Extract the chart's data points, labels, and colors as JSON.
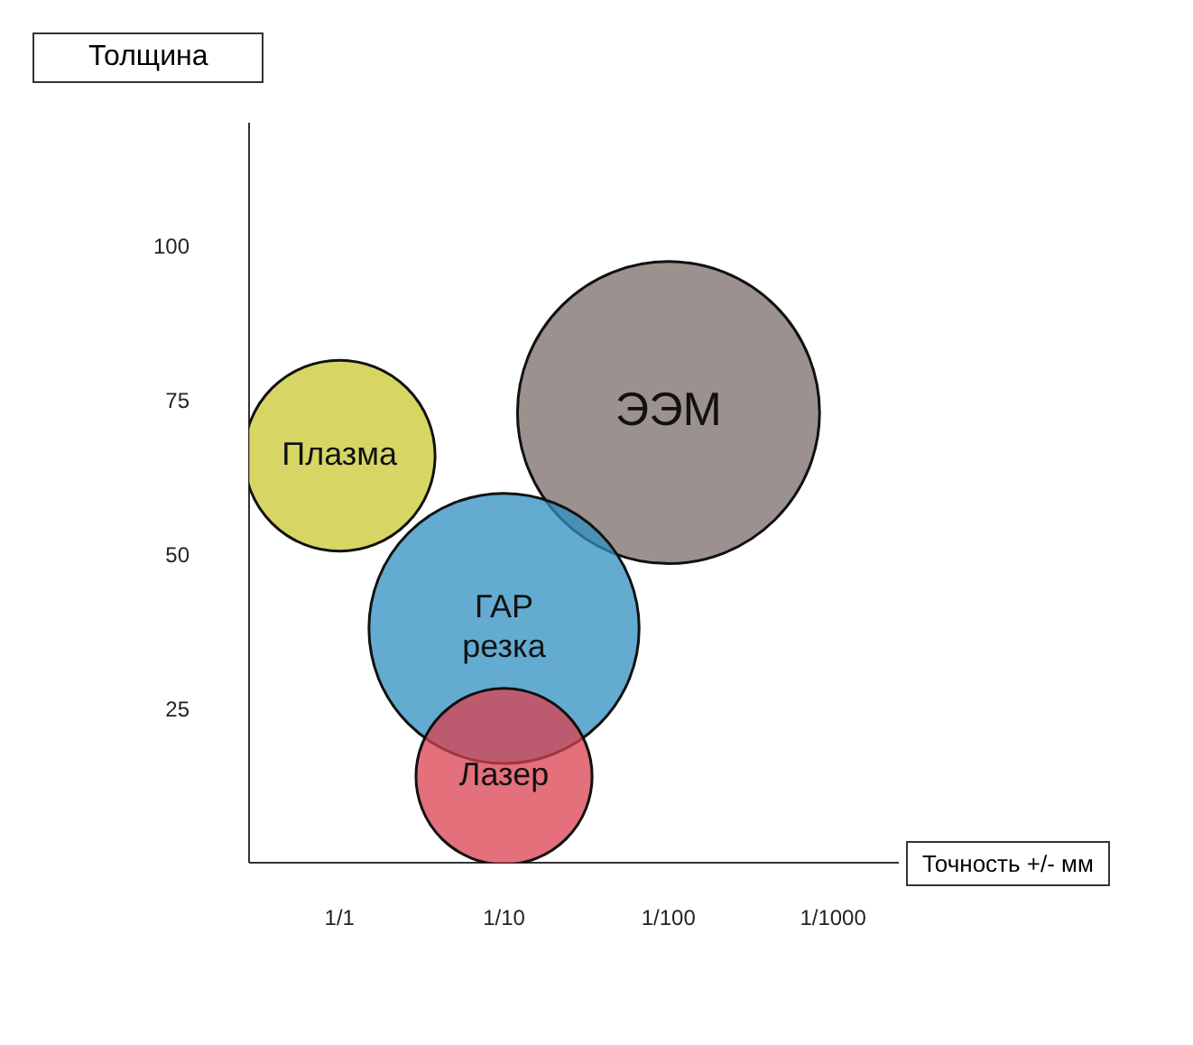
{
  "chart_data": {
    "type": "bubble",
    "xlabel": "Точность +/- мм",
    "ylabel": "Толщина",
    "categories": [
      "1/1",
      "1/10",
      "1/100",
      "1/1000"
    ],
    "ylim": [
      0,
      120
    ],
    "yticks": [
      25,
      50,
      75,
      100
    ],
    "grid": false,
    "legend": false,
    "marker": "circle",
    "series": [
      {
        "name": "ЭЭМ",
        "color": "#7a6c6a",
        "x": [
          "1/100"
        ],
        "values": [
          73
        ],
        "sizes": [
          1
        ]
      },
      {
        "name": "ГАР резка",
        "color": "#2f8fc0",
        "x": [
          "1/10"
        ],
        "values": [
          38
        ],
        "sizes": [
          0.8
        ]
      },
      {
        "name": "Плазма",
        "color": "#c9c832",
        "x": [
          "1/1"
        ],
        "values": [
          66
        ],
        "sizes": [
          0.4
        ]
      },
      {
        "name": "Лазер",
        "color": "#d9404f",
        "x": [
          "1/10"
        ],
        "values": [
          14
        ],
        "sizes": [
          0.34
        ]
      }
    ]
  }
}
